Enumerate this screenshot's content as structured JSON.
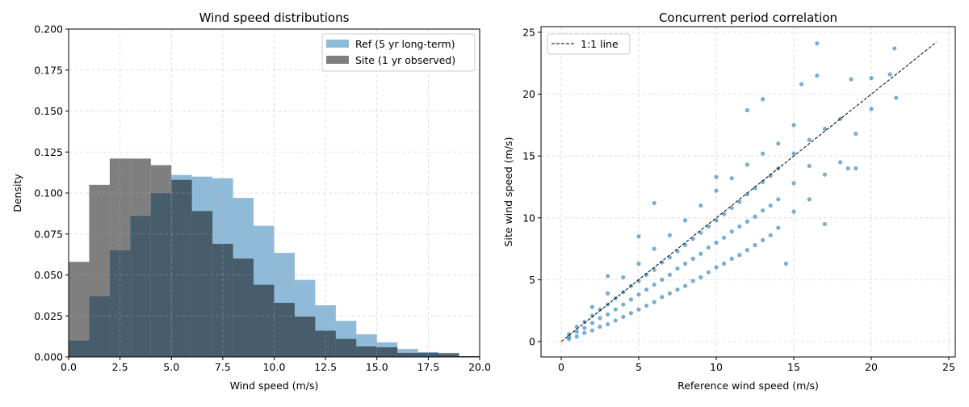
{
  "chart_data": [
    {
      "type": "bar",
      "title": "Wind speed distributions",
      "xlabel": "Wind speed (m/s)",
      "ylabel": "Density",
      "xlim": [
        0,
        20
      ],
      "ylim": [
        0,
        0.2
      ],
      "xticks": [
        "0.0",
        "2.5",
        "5.0",
        "7.5",
        "10.0",
        "12.5",
        "15.0",
        "17.5",
        "20.0"
      ],
      "yticks": [
        "0.000",
        "0.025",
        "0.050",
        "0.075",
        "0.100",
        "0.125",
        "0.150",
        "0.175",
        "0.200"
      ],
      "grid": true,
      "legend_position": "top-right",
      "bin_edges": [
        0,
        1,
        2,
        3,
        4,
        5,
        6,
        7,
        8,
        9,
        10,
        11,
        12,
        13,
        14,
        15,
        16,
        17,
        18,
        19,
        20
      ],
      "series": [
        {
          "name": "Ref (5 yr long-term)",
          "color": "#1f77b4",
          "alpha": 0.5,
          "values": [
            0.01,
            0.037,
            0.065,
            0.086,
            0.1,
            0.111,
            0.11,
            0.109,
            0.097,
            0.08,
            0.0635,
            0.047,
            0.0315,
            0.022,
            0.0138,
            0.0089,
            0.0049,
            0.003,
            0.0015,
            0.0005
          ]
        },
        {
          "name": "Site (1 yr observed)",
          "color": "#000000",
          "alpha": 0.5,
          "values": [
            0.058,
            0.105,
            0.121,
            0.121,
            0.117,
            0.108,
            0.089,
            0.069,
            0.06,
            0.044,
            0.033,
            0.0246,
            0.016,
            0.011,
            0.0064,
            0.0059,
            0.0025,
            0.0025,
            0.0025,
            0.0005
          ]
        }
      ]
    },
    {
      "type": "scatter",
      "title": "Concurrent period correlation",
      "xlabel": "Reference wind speed (m/s)",
      "ylabel": "Site wind speed (m/s)",
      "xlim": [
        -1.2,
        25.4
      ],
      "ylim": [
        -1.2,
        25.4
      ],
      "xticks": [
        "0",
        "5",
        "10",
        "15",
        "20",
        "25"
      ],
      "yticks": [
        "0",
        "5",
        "10",
        "15",
        "20",
        "25"
      ],
      "grid": true,
      "legend_position": "top-left",
      "point_color": "#1f77b4",
      "line": {
        "name": "1:1 line",
        "x": [
          0,
          24.2
        ],
        "y": [
          0,
          24.2
        ],
        "color": "#000000",
        "style": "dashed"
      },
      "points": [
        [
          0.5,
          0.2
        ],
        [
          0.5,
          0.4
        ],
        [
          0.5,
          0.6
        ],
        [
          1,
          0.4
        ],
        [
          1,
          0.8
        ],
        [
          1,
          1.2
        ],
        [
          1.5,
          0.7
        ],
        [
          1.5,
          1.1
        ],
        [
          1.5,
          1.6
        ],
        [
          2,
          0.9
        ],
        [
          2,
          1.5
        ],
        [
          2,
          2.1
        ],
        [
          2,
          2.8
        ],
        [
          2.5,
          1.2
        ],
        [
          2.5,
          1.9
        ],
        [
          2.5,
          2.6
        ],
        [
          3,
          1.4
        ],
        [
          3,
          2.2
        ],
        [
          3,
          3.0
        ],
        [
          3,
          3.9
        ],
        [
          3.5,
          1.7
        ],
        [
          3.5,
          2.6
        ],
        [
          3.5,
          3.5
        ],
        [
          4,
          2.0
        ],
        [
          4,
          3.0
        ],
        [
          4,
          4.0
        ],
        [
          4,
          5.2
        ],
        [
          4.5,
          2.3
        ],
        [
          4.5,
          3.4
        ],
        [
          4.5,
          4.5
        ],
        [
          5,
          2.6
        ],
        [
          5,
          3.8
        ],
        [
          5,
          4.9
        ],
        [
          5,
          6.3
        ],
        [
          5.5,
          2.9
        ],
        [
          5.5,
          4.2
        ],
        [
          5.5,
          5.4
        ],
        [
          6,
          3.2
        ],
        [
          6,
          4.6
        ],
        [
          6,
          5.8
        ],
        [
          6,
          7.5
        ],
        [
          6.5,
          3.6
        ],
        [
          6.5,
          5.0
        ],
        [
          6.5,
          6.4
        ],
        [
          7,
          3.9
        ],
        [
          7,
          5.4
        ],
        [
          7,
          6.8
        ],
        [
          7,
          8.6
        ],
        [
          7.5,
          4.2
        ],
        [
          7.5,
          5.9
        ],
        [
          7.5,
          7.3
        ],
        [
          8,
          4.5
        ],
        [
          8,
          6.3
        ],
        [
          8,
          7.8
        ],
        [
          8,
          9.8
        ],
        [
          8.5,
          4.9
        ],
        [
          8.5,
          6.7
        ],
        [
          8.5,
          8.3
        ],
        [
          9,
          5.2
        ],
        [
          9,
          7.1
        ],
        [
          9,
          8.8
        ],
        [
          9,
          11.0
        ],
        [
          9.5,
          5.6
        ],
        [
          9.5,
          7.6
        ],
        [
          9.5,
          9.3
        ],
        [
          10,
          6.0
        ],
        [
          10,
          8.0
        ],
        [
          10,
          9.8
        ],
        [
          10,
          12.2
        ],
        [
          10.5,
          6.3
        ],
        [
          10.5,
          8.4
        ],
        [
          10.5,
          10.3
        ],
        [
          11,
          6.7
        ],
        [
          11,
          8.9
        ],
        [
          11,
          10.8
        ],
        [
          11,
          13.2
        ],
        [
          11.5,
          7.0
        ],
        [
          11.5,
          9.3
        ],
        [
          11.5,
          11.3
        ],
        [
          12,
          7.4
        ],
        [
          12,
          9.7
        ],
        [
          12,
          11.9
        ],
        [
          12,
          14.3
        ],
        [
          12.5,
          7.8
        ],
        [
          12.5,
          10.1
        ],
        [
          12.5,
          12.4
        ],
        [
          13,
          8.2
        ],
        [
          13,
          10.6
        ],
        [
          13,
          12.9
        ],
        [
          13,
          15.2
        ],
        [
          13.5,
          8.6
        ],
        [
          13.5,
          11.0
        ],
        [
          13.5,
          13.4
        ],
        [
          14,
          9.2
        ],
        [
          14,
          11.5
        ],
        [
          14,
          14.0
        ],
        [
          14,
          16.0
        ],
        [
          15,
          10.5
        ],
        [
          15,
          12.8
        ],
        [
          15,
          15.2
        ],
        [
          15,
          17.5
        ],
        [
          16,
          11.5
        ],
        [
          16,
          14.2
        ],
        [
          16,
          16.3
        ],
        [
          17,
          9.5
        ],
        [
          17,
          13.5
        ],
        [
          17,
          17.2
        ],
        [
          18,
          14.5
        ],
        [
          18,
          18.0
        ],
        [
          19,
          14.0
        ],
        [
          19,
          16.8
        ],
        [
          16.5,
          24.1
        ],
        [
          21.5,
          23.7
        ],
        [
          21.2,
          21.6
        ],
        [
          20,
          21.3
        ],
        [
          16.5,
          21.5
        ],
        [
          18.7,
          21.2
        ],
        [
          21.6,
          19.7
        ],
        [
          20,
          18.8
        ],
        [
          12,
          18.7
        ],
        [
          10,
          13.3
        ],
        [
          6,
          11.2
        ],
        [
          5,
          8.5
        ],
        [
          3,
          5.3
        ],
        [
          14.5,
          6.3
        ],
        [
          18.5,
          14.0
        ],
        [
          13,
          19.6
        ],
        [
          15.5,
          20.8
        ]
      ]
    }
  ]
}
